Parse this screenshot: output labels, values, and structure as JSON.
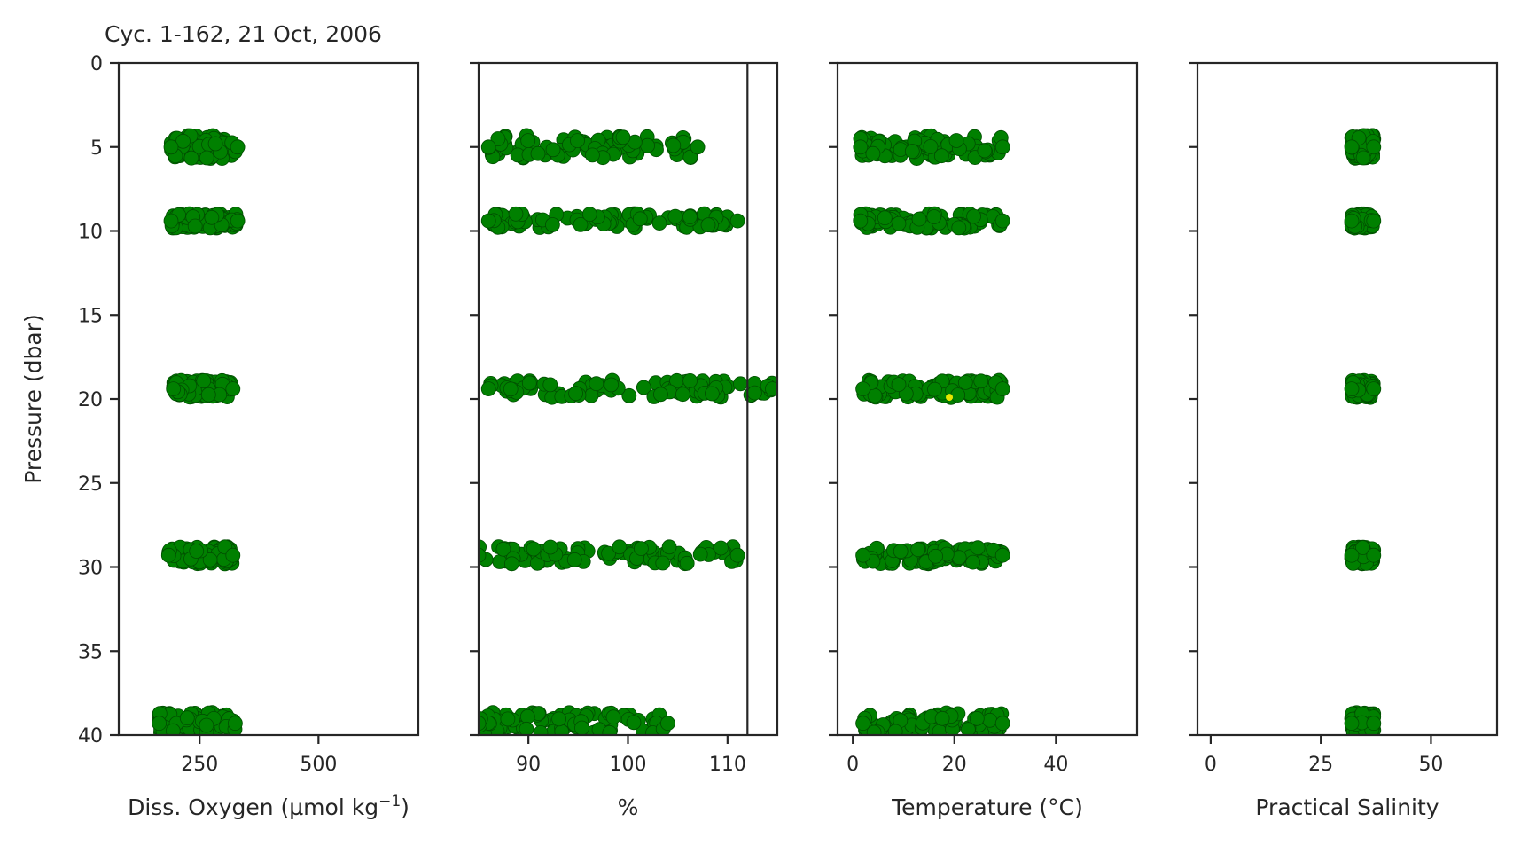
{
  "chart_data": [
    {
      "type": "scatter",
      "title": "Cyc. 1-162, 21 Oct, 2006",
      "xlabel": "Diss. Oxygen (µmol kg",
      "xlabel_superscript": "−1",
      "xlabel_suffix": ")",
      "ylabel": "Pressure (dbar)",
      "xlim": [
        80,
        710
      ],
      "ylim": [
        40,
        0
      ],
      "xticks": [
        250,
        500
      ],
      "yticks": [
        0,
        5,
        10,
        15,
        20,
        25,
        30,
        35,
        40
      ],
      "series": [
        {
          "clusters": [
            {
              "y": 5.0,
              "x_min": 190,
              "x_max": 330,
              "ymin": 4.3,
              "ymax": 5.9
            },
            {
              "y": 9.4,
              "x_min": 190,
              "x_max": 330,
              "ymin": 8.9,
              "ymax": 9.9
            },
            {
              "y": 19.4,
              "x_min": 195,
              "x_max": 320,
              "ymin": 18.7,
              "ymax": 19.9
            },
            {
              "y": 29.3,
              "x_min": 185,
              "x_max": 320,
              "ymin": 28.6,
              "ymax": 29.8
            },
            {
              "y": 39.3,
              "x_min": 165,
              "x_max": 325,
              "ymin": 38.5,
              "ymax": 40.0
            }
          ],
          "color": "#008000",
          "edge_color": "#004d00"
        }
      ]
    },
    {
      "type": "scatter",
      "title": "",
      "xlabel": "%",
      "xlim": [
        85,
        115
      ],
      "ylim": [
        40,
        0
      ],
      "xticks": [
        90,
        100,
        110
      ],
      "yticks": [
        0,
        5,
        10,
        15,
        20,
        25,
        30,
        35,
        40
      ],
      "vline": 112,
      "series": [
        {
          "clusters": [
            {
              "y": 5.0,
              "x_min": 86,
              "x_max": 107,
              "ymin": 4.3,
              "ymax": 5.9
            },
            {
              "y": 9.4,
              "x_min": 86,
              "x_max": 111,
              "ymin": 8.9,
              "ymax": 9.9
            },
            {
              "y": 19.4,
              "x_min": 86,
              "x_max": 114.5,
              "ymin": 18.7,
              "ymax": 19.9
            },
            {
              "y": 29.3,
              "x_min": 85,
              "x_max": 111,
              "ymin": 28.6,
              "ymax": 29.8
            },
            {
              "y": 39.3,
              "x_min": 85,
              "x_max": 104,
              "ymin": 38.5,
              "ymax": 40.0
            }
          ],
          "color": "#008000",
          "edge_color": "#004d00"
        }
      ]
    },
    {
      "type": "scatter",
      "title": "",
      "xlabel": "Temperature (°C)",
      "xlim": [
        -3,
        56
      ],
      "ylim": [
        40,
        0
      ],
      "xticks": [
        0,
        20,
        40
      ],
      "yticks": [
        0,
        5,
        10,
        15,
        20,
        25,
        30,
        35,
        40
      ],
      "series": [
        {
          "clusters": [
            {
              "y": 5.0,
              "x_min": 1.5,
              "x_max": 29.5,
              "ymin": 4.3,
              "ymax": 5.9
            },
            {
              "y": 9.4,
              "x_min": 1.5,
              "x_max": 29.5,
              "ymin": 8.9,
              "ymax": 9.9
            },
            {
              "y": 19.4,
              "x_min": 2,
              "x_max": 29.5,
              "ymin": 18.7,
              "ymax": 19.9
            },
            {
              "y": 29.3,
              "x_min": 2,
              "x_max": 29.5,
              "ymin": 28.6,
              "ymax": 29.8
            },
            {
              "y": 39.3,
              "x_min": 2,
              "x_max": 29.5,
              "ymin": 38.5,
              "ymax": 40.0
            }
          ],
          "color": "#008000",
          "edge_color": "#004d00",
          "highlight": {
            "x": 19,
            "y": 19.9,
            "color": "#e6e600"
          }
        }
      ]
    },
    {
      "type": "scatter",
      "title": "",
      "xlabel": "Practical Salinity",
      "xlim": [
        -3,
        65
      ],
      "ylim": [
        40,
        0
      ],
      "xticks": [
        0,
        25,
        50
      ],
      "yticks": [
        0,
        5,
        10,
        15,
        20,
        25,
        30,
        35,
        40
      ],
      "series": [
        {
          "clusters": [
            {
              "y": 5.0,
              "x_min": 32,
              "x_max": 37,
              "ymin": 4.3,
              "ymax": 5.9
            },
            {
              "y": 9.4,
              "x_min": 32,
              "x_max": 37,
              "ymin": 8.9,
              "ymax": 9.9
            },
            {
              "y": 19.4,
              "x_min": 32,
              "x_max": 37,
              "ymin": 18.7,
              "ymax": 19.9
            },
            {
              "y": 29.3,
              "x_min": 32,
              "x_max": 37,
              "ymin": 28.6,
              "ymax": 29.8
            },
            {
              "y": 39.3,
              "x_min": 32,
              "x_max": 37,
              "ymin": 38.5,
              "ymax": 40.0
            }
          ],
          "color": "#008000",
          "edge_color": "#004d00"
        }
      ]
    }
  ]
}
